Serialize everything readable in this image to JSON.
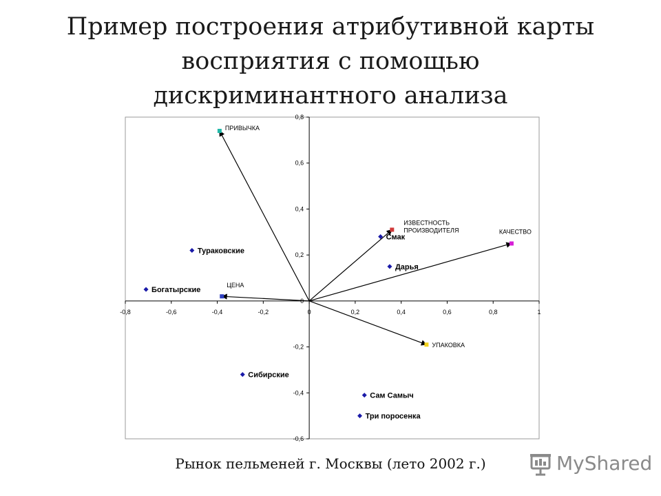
{
  "slide": {
    "title_lines": [
      "Пример построения атрибутивной карты",
      "восприятия с помощью",
      "дискриминантного анализа"
    ],
    "caption": "Рынок пельменей г. Москвы (лето 2002 г.)",
    "logo": {
      "text": "MyShared",
      "icon": "presentation-board-icon"
    }
  },
  "chart_data": {
    "type": "scatter",
    "title": "",
    "xlabel": "",
    "ylabel": "",
    "xlim": [
      -0.8,
      1
    ],
    "ylim": [
      -0.6,
      0.8
    ],
    "x_ticks": [
      -0.8,
      -0.6,
      -0.4,
      -0.2,
      0,
      0.2,
      0.4,
      0.6,
      0.8,
      1
    ],
    "y_ticks": [
      -0.6,
      -0.4,
      -0.2,
      0,
      0.2,
      0.4,
      0.6,
      0.8
    ],
    "x_tick_labels": [
      "-0,8",
      "-0,6",
      "-0,4",
      "-0,2",
      "0",
      "0,2",
      "0,4",
      "0,6",
      "0,8",
      "1"
    ],
    "y_tick_labels": [
      "-0,6",
      "-0,4",
      "-0,2",
      "0",
      "0,2",
      "0,4",
      "0,6",
      "0,8"
    ],
    "grid": false,
    "legend": "none",
    "brands": [
      {
        "label": "Тураковские",
        "x": -0.51,
        "y": 0.22
      },
      {
        "label": "Богатырские",
        "x": -0.71,
        "y": 0.05
      },
      {
        "label": "Сибирские",
        "x": -0.29,
        "y": -0.32
      },
      {
        "label": "Смак",
        "x": 0.31,
        "y": 0.28
      },
      {
        "label": "Дарья",
        "x": 0.35,
        "y": 0.15
      },
      {
        "label": "Сам Самыч",
        "x": 0.24,
        "y": -0.41
      },
      {
        "label": "Три поросенка",
        "x": 0.22,
        "y": -0.5
      }
    ],
    "attributes": [
      {
        "label": "ПРИВЫЧКА",
        "lines": [
          "ПРИВЫЧКА"
        ],
        "x": -0.39,
        "y": 0.74,
        "color": "#21b8a8"
      },
      {
        "label": "ИЗВЕСТНОСТЬ ПРОИЗВОДИТЕЛЯ",
        "lines": [
          "ИЗВЕСТНОСТЬ",
          "ПРОИЗВОДИТЕЛЯ"
        ],
        "x": 0.36,
        "y": 0.31,
        "color": "#d13a3a"
      },
      {
        "label": "КАЧЕСТВО",
        "lines": [
          "КАЧЕСТВО"
        ],
        "x": 0.88,
        "y": 0.25,
        "color": "#d61fd6"
      },
      {
        "label": "ЦЕНА",
        "lines": [
          "ЦЕНА"
        ],
        "x": -0.38,
        "y": 0.02,
        "color": "#3040c0"
      },
      {
        "label": "УПАКОВКА",
        "lines": [
          "УПАКОВКА"
        ],
        "x": 0.51,
        "y": -0.19,
        "color": "#f2d21c"
      }
    ],
    "colors": {
      "brand_marker": "#1a1aa8",
      "axes": "#000000",
      "frame": "#9a9a9a"
    }
  }
}
